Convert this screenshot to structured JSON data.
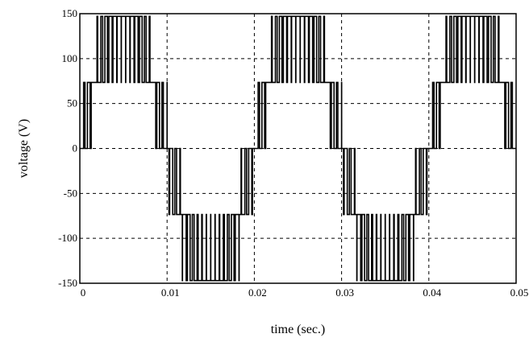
{
  "chart_data": {
    "type": "line",
    "title": "",
    "xlabel": "time (sec.)",
    "ylabel": "voltage (V)",
    "xlim": [
      0,
      0.05
    ],
    "ylim": [
      -150,
      150
    ],
    "x_ticks": [
      0,
      0.01,
      0.02,
      0.03,
      0.04,
      0.05
    ],
    "x_tick_labels": [
      "0",
      "0.01",
      "0.02",
      "0.03",
      "0.04",
      "0.05"
    ],
    "y_ticks": [
      -150,
      -100,
      -50,
      0,
      50,
      100,
      150
    ],
    "y_tick_labels": [
      "-150",
      "-100",
      "-50",
      "0",
      "50",
      "100",
      "150"
    ],
    "grid": true,
    "grid_style": "dashed",
    "series": [
      {
        "color": "#000000",
        "fundamental_frequency_hz": 50,
        "levels": [
          -147,
          -73.5,
          0,
          73.5,
          147
        ],
        "carrier_frequency_hz": 2000,
        "modulation_amplitude": 145
      }
    ]
  }
}
